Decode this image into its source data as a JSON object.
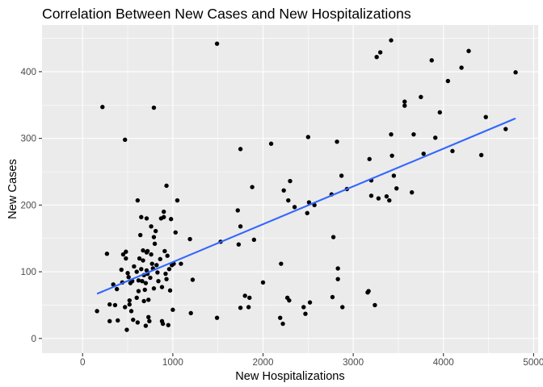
{
  "chart_data": {
    "type": "scatter",
    "title": "Correlation Between New Cases and New Hospitalizations",
    "xlabel": "New Hospitalizations",
    "ylabel": "New Cases",
    "xlim": [
      -450,
      5050
    ],
    "ylim": [
      -22,
      470
    ],
    "xticks": [
      0,
      1000,
      2000,
      3000,
      4000,
      5000
    ],
    "xtick_labels": [
      "0",
      "1000",
      "2000",
      "3000",
      "4000",
      "5000"
    ],
    "yticks": [
      0,
      100,
      200,
      300,
      400
    ],
    "ytick_labels": [
      "0",
      "100",
      "200",
      "300",
      "400"
    ],
    "x_minor": [
      500,
      1500,
      2500,
      3500,
      4500
    ],
    "y_minor": [
      50,
      150,
      250,
      350,
      450
    ],
    "grid": true,
    "background": "#ebebeb",
    "gridline_color": "#ffffff",
    "point_color": "#000000",
    "trend_color": "#3366ff",
    "trend_line": {
      "method": "linear",
      "x": [
        160,
        4800
      ],
      "y": [
        67,
        330
      ]
    },
    "points": [
      [
        160,
        41
      ],
      [
        220,
        347
      ],
      [
        270,
        127
      ],
      [
        300,
        51
      ],
      [
        300,
        26
      ],
      [
        340,
        81
      ],
      [
        360,
        50
      ],
      [
        380,
        74
      ],
      [
        390,
        27
      ],
      [
        430,
        103
      ],
      [
        440,
        84
      ],
      [
        450,
        126
      ],
      [
        470,
        298
      ],
      [
        470,
        47
      ],
      [
        480,
        130
      ],
      [
        480,
        120
      ],
      [
        490,
        13
      ],
      [
        500,
        98
      ],
      [
        510,
        92
      ],
      [
        520,
        57
      ],
      [
        520,
        51
      ],
      [
        530,
        83
      ],
      [
        540,
        41
      ],
      [
        550,
        86
      ],
      [
        560,
        28
      ],
      [
        570,
        108
      ],
      [
        600,
        61
      ],
      [
        600,
        100
      ],
      [
        610,
        207
      ],
      [
        610,
        24
      ],
      [
        620,
        71
      ],
      [
        620,
        87
      ],
      [
        630,
        120
      ],
      [
        640,
        155
      ],
      [
        650,
        182
      ],
      [
        650,
        104
      ],
      [
        660,
        86
      ],
      [
        670,
        132
      ],
      [
        670,
        117
      ],
      [
        680,
        95
      ],
      [
        680,
        56
      ],
      [
        690,
        73
      ],
      [
        700,
        83
      ],
      [
        700,
        19
      ],
      [
        710,
        180
      ],
      [
        710,
        129
      ],
      [
        710,
        102
      ],
      [
        720,
        131
      ],
      [
        720,
        97
      ],
      [
        730,
        58
      ],
      [
        730,
        32
      ],
      [
        740,
        26
      ],
      [
        750,
        91
      ],
      [
        760,
        168
      ],
      [
        760,
        126
      ],
      [
        770,
        112
      ],
      [
        780,
        105
      ],
      [
        790,
        346
      ],
      [
        790,
        152
      ],
      [
        790,
        75
      ],
      [
        800,
        142
      ],
      [
        810,
        161
      ],
      [
        820,
        110
      ],
      [
        830,
        99
      ],
      [
        840,
        86
      ],
      [
        860,
        119
      ],
      [
        870,
        180
      ],
      [
        880,
        77
      ],
      [
        880,
        26
      ],
      [
        890,
        22
      ],
      [
        900,
        190
      ],
      [
        900,
        182
      ],
      [
        910,
        131
      ],
      [
        920,
        97
      ],
      [
        930,
        89
      ],
      [
        930,
        229
      ],
      [
        940,
        124
      ],
      [
        950,
        20
      ],
      [
        960,
        104
      ],
      [
        970,
        72
      ],
      [
        980,
        179
      ],
      [
        990,
        110
      ],
      [
        1000,
        43
      ],
      [
        1010,
        112
      ],
      [
        1030,
        159
      ],
      [
        1050,
        207
      ],
      [
        1090,
        112
      ],
      [
        1190,
        149
      ],
      [
        1200,
        38
      ],
      [
        1220,
        88
      ],
      [
        1490,
        442
      ],
      [
        1490,
        31
      ],
      [
        1530,
        145
      ],
      [
        1720,
        192
      ],
      [
        1730,
        141
      ],
      [
        1750,
        46
      ],
      [
        1750,
        168
      ],
      [
        1750,
        284
      ],
      [
        1800,
        64
      ],
      [
        1840,
        47
      ],
      [
        1850,
        61
      ],
      [
        1880,
        227
      ],
      [
        1900,
        148
      ],
      [
        2000,
        84
      ],
      [
        2090,
        292
      ],
      [
        2190,
        31
      ],
      [
        2200,
        112
      ],
      [
        2220,
        22
      ],
      [
        2230,
        222
      ],
      [
        2270,
        61
      ],
      [
        2280,
        207
      ],
      [
        2290,
        57
      ],
      [
        2300,
        236
      ],
      [
        2350,
        197
      ],
      [
        2450,
        47
      ],
      [
        2470,
        37
      ],
      [
        2490,
        188
      ],
      [
        2500,
        302
      ],
      [
        2510,
        204
      ],
      [
        2520,
        54
      ],
      [
        2570,
        200
      ],
      [
        2760,
        216
      ],
      [
        2770,
        62
      ],
      [
        2780,
        152
      ],
      [
        2820,
        295
      ],
      [
        2830,
        89
      ],
      [
        2830,
        105
      ],
      [
        2870,
        244
      ],
      [
        2880,
        47
      ],
      [
        2930,
        224
      ],
      [
        3160,
        69
      ],
      [
        3170,
        71
      ],
      [
        3180,
        269
      ],
      [
        3200,
        214
      ],
      [
        3200,
        237
      ],
      [
        3240,
        50
      ],
      [
        3260,
        422
      ],
      [
        3280,
        210
      ],
      [
        3300,
        429
      ],
      [
        3370,
        213
      ],
      [
        3400,
        207
      ],
      [
        3420,
        447
      ],
      [
        3420,
        306
      ],
      [
        3430,
        274
      ],
      [
        3450,
        244
      ],
      [
        3480,
        225
      ],
      [
        3570,
        349
      ],
      [
        3570,
        355
      ],
      [
        3650,
        219
      ],
      [
        3670,
        306
      ],
      [
        3750,
        362
      ],
      [
        3780,
        277
      ],
      [
        3870,
        417
      ],
      [
        3910,
        301
      ],
      [
        3960,
        339
      ],
      [
        4050,
        386
      ],
      [
        4100,
        281
      ],
      [
        4200,
        406
      ],
      [
        4280,
        431
      ],
      [
        4420,
        275
      ],
      [
        4470,
        332
      ],
      [
        4690,
        314
      ],
      [
        4800,
        399
      ]
    ]
  }
}
